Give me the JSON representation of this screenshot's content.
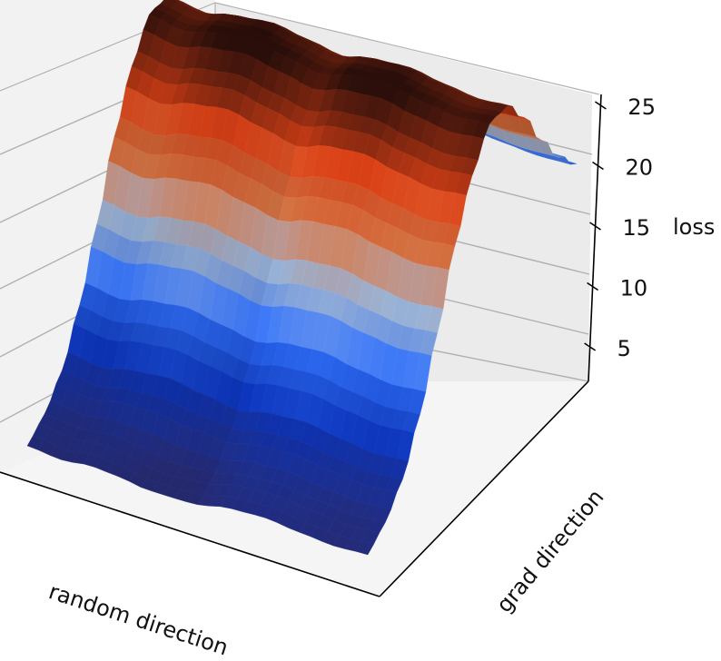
{
  "chart_data": {
    "type": "surface3d",
    "title": "",
    "xlabel": "random direction",
    "ylabel": "grad direction",
    "zlabel": "loss",
    "zticks": [
      5,
      10,
      15,
      20,
      25
    ],
    "zlim": [
      2,
      26
    ],
    "grid": true,
    "colormap": [
      "#262a70",
      "#0b2fa8",
      "#2a63e0",
      "#8ea4c4",
      "#c26a3e",
      "#c43a14",
      "#2a0e0a"
    ],
    "surface": {
      "description_of_shape": "ridge along grad direction, flat along random direction",
      "grad_direction_profile": [
        2.5,
        3.0,
        4.5,
        8.0,
        13.0,
        18.5,
        22.5,
        24.8,
        24.0,
        20.5,
        16.0,
        12.0,
        9.0
      ],
      "random_direction_variation": [
        0.0,
        -0.6,
        0.4,
        0.9,
        0.2,
        -0.5,
        0.5,
        0.8,
        0.1,
        -0.4,
        0.0
      ]
    }
  }
}
